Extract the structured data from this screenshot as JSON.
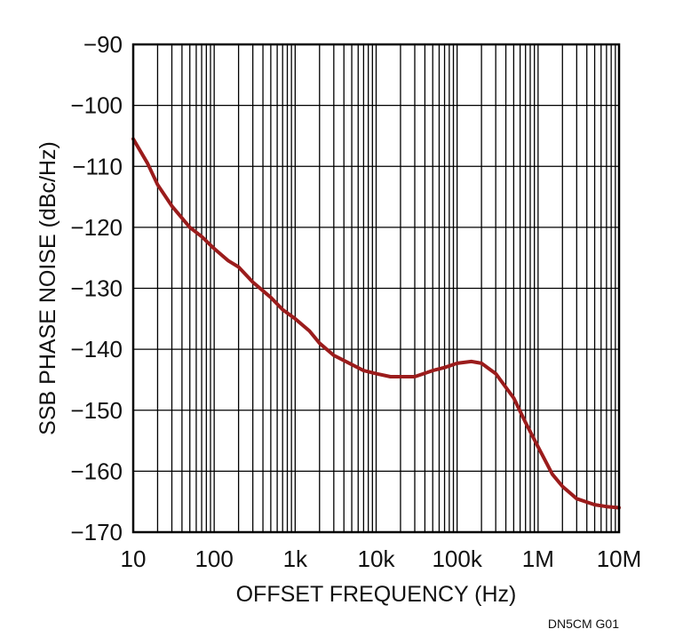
{
  "chart_data": {
    "type": "line",
    "title": "",
    "xlabel": "OFFSET FREQUENCY (Hz)",
    "ylabel": "SSB PHASE NOISE (dBc/Hz)",
    "x_scale": "log",
    "xlim": [
      10,
      10000000
    ],
    "ylim": [
      -170,
      -90
    ],
    "grid": true,
    "legend": "none",
    "x_ticks": [
      10,
      100,
      1000,
      10000,
      100000,
      1000000,
      10000000
    ],
    "x_tick_labels": [
      "10",
      "100",
      "1k",
      "10k",
      "100k",
      "1M",
      "10M"
    ],
    "y_ticks": [
      -90,
      -100,
      -110,
      -120,
      -130,
      -140,
      -150,
      -160,
      -170
    ],
    "y_tick_labels": [
      "−90",
      "−100",
      "−110",
      "−120",
      "−130",
      "−140",
      "−150",
      "−160",
      "−170"
    ],
    "series": [
      {
        "color": "#9b1c1c",
        "x": [
          10,
          15,
          20,
          30,
          50,
          70,
          100,
          150,
          200,
          300,
          500,
          700,
          1000,
          1500,
          2000,
          3000,
          5000,
          7000,
          10000,
          15000,
          20000,
          30000,
          50000,
          70000,
          100000,
          150000,
          200000,
          300000,
          500000,
          700000,
          1000000,
          1500000,
          2000000,
          3000000,
          5000000,
          7000000,
          10000000
        ],
        "y": [
          -105.5,
          -109.5,
          -113,
          -116.5,
          -120,
          -121.5,
          -123.5,
          -125.5,
          -126.5,
          -129,
          -131.5,
          -133.5,
          -135,
          -137,
          -139,
          -141,
          -142.5,
          -143.5,
          -144,
          -144.5,
          -144.5,
          -144.5,
          -143.5,
          -143,
          -142.3,
          -142,
          -142.3,
          -144,
          -148,
          -152,
          -156,
          -160.5,
          -162.5,
          -164.5,
          -165.5,
          -165.8,
          -166
        ]
      }
    ]
  },
  "figure_code": "DN5CM G01",
  "colors": {
    "trace": "#9b1c1c",
    "grid": "#000000",
    "background": "#ffffff"
  }
}
